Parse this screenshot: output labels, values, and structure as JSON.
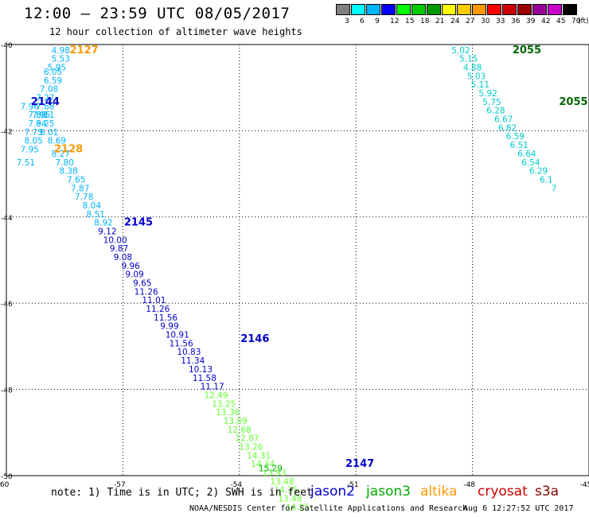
{
  "header": {
    "title": "12:00 – 23:59 UTC 08/05/2017",
    "subtitle": "12 hour collection of altimeter wave heights"
  },
  "color_scale": {
    "unit": "(ft)",
    "bins": [
      {
        "label": "3",
        "color": "#808080"
      },
      {
        "label": "6",
        "color": "#00ffff"
      },
      {
        "label": "9",
        "color": "#00b4ff"
      },
      {
        "label": "12",
        "color": "#0000ff"
      },
      {
        "label": "15",
        "color": "#00ff00"
      },
      {
        "label": "18",
        "color": "#00cc00"
      },
      {
        "label": "21",
        "color": "#009900"
      },
      {
        "label": "24",
        "color": "#ffff00"
      },
      {
        "label": "27",
        "color": "#ffcc00"
      },
      {
        "label": "30",
        "color": "#ff9900"
      },
      {
        "label": "33",
        "color": "#ff0000"
      },
      {
        "label": "36",
        "color": "#cc0000"
      },
      {
        "label": "39",
        "color": "#990000"
      },
      {
        "label": "42",
        "color": "#990099"
      },
      {
        "label": "45",
        "color": "#cc00cc"
      },
      {
        "label": "70",
        "color": "#000000"
      }
    ]
  },
  "map": {
    "lon_range": [
      -60,
      -45
    ],
    "lat_range": [
      -50,
      -40
    ],
    "lon_ticks": [
      -60,
      -57,
      -54,
      -51,
      -48,
      -45
    ],
    "lat_ticks": [
      -40,
      -42,
      -44,
      -46,
      -48,
      -50
    ],
    "lon_tick_labels": [
      "-60",
      "-57",
      "-54",
      "-51",
      "-48",
      "-45"
    ],
    "lat_tick_labels": [
      "-40",
      "-42",
      "-44",
      "-46",
      "-48",
      "-50"
    ]
  },
  "tracks": [
    {
      "sat": "altika",
      "color": "#00b4ff",
      "points": [
        {
          "lon": -58.6,
          "lat": -40.2,
          "v": "4.98"
        },
        {
          "lon": -58.6,
          "lat": -40.4,
          "v": "5.53"
        },
        {
          "lon": -58.7,
          "lat": -40.6,
          "v": "5.95"
        },
        {
          "lon": -58.8,
          "lat": -40.7,
          "v": "6.05"
        },
        {
          "lon": -58.8,
          "lat": -40.9,
          "v": "6.59"
        },
        {
          "lon": -58.9,
          "lat": -41.1,
          "v": "7.08"
        },
        {
          "lon": -59.0,
          "lat": -41.3,
          "v": "7.27"
        },
        {
          "lon": -59.0,
          "lat": -41.5,
          "v": "7.68"
        },
        {
          "lon": -59.1,
          "lat": -41.7,
          "v": "7.95"
        },
        {
          "lon": -59.2,
          "lat": -41.9,
          "v": "7.94"
        },
        {
          "lon": -59.3,
          "lat": -42.1,
          "v": "7.75"
        },
        {
          "lon": -59.3,
          "lat": -42.3,
          "v": "8.05"
        },
        {
          "lon": -59.4,
          "lat": -42.5,
          "v": "7.95"
        },
        {
          "lon": -59.5,
          "lat": -42.8,
          "v": "7.51"
        }
      ]
    },
    {
      "sat": "jason2",
      "color": "#00b4ff",
      "points": [
        {
          "lon": -59.4,
          "lat": -41.5,
          "v": "7.96"
        },
        {
          "lon": -59.2,
          "lat": -41.7,
          "v": "7.58"
        },
        {
          "lon": -59.0,
          "lat": -41.7,
          "v": "8.11"
        },
        {
          "lon": -59.0,
          "lat": -41.9,
          "v": "8.25"
        },
        {
          "lon": -58.9,
          "lat": -42.1,
          "v": "8.01"
        },
        {
          "lon": -58.7,
          "lat": -42.3,
          "v": "8.69"
        },
        {
          "lon": -58.6,
          "lat": -42.6,
          "v": "8.27"
        },
        {
          "lon": -58.5,
          "lat": -42.8,
          "v": "7.80"
        },
        {
          "lon": -58.4,
          "lat": -43.0,
          "v": "8.38"
        },
        {
          "lon": -58.2,
          "lat": -43.2,
          "v": "7.65"
        },
        {
          "lon": -58.1,
          "lat": -43.4,
          "v": "7.87"
        },
        {
          "lon": -58.0,
          "lat": -43.6,
          "v": "7.78"
        },
        {
          "lon": -57.8,
          "lat": -43.8,
          "v": "8.04"
        },
        {
          "lon": -57.7,
          "lat": -44.0,
          "v": "8.51"
        },
        {
          "lon": -57.5,
          "lat": -44.2,
          "v": "8.92"
        }
      ]
    },
    {
      "sat": "jason2",
      "color": "#0000cc",
      "points": [
        {
          "lon": -57.4,
          "lat": -44.4,
          "v": "9.12"
        },
        {
          "lon": -57.2,
          "lat": -44.6,
          "v": "10.00"
        },
        {
          "lon": -57.1,
          "lat": -44.8,
          "v": "9.87"
        },
        {
          "lon": -57.0,
          "lat": -45.0,
          "v": "9.08"
        },
        {
          "lon": -56.8,
          "lat": -45.2,
          "v": "9.96"
        },
        {
          "lon": -56.7,
          "lat": -45.4,
          "v": "9.09"
        },
        {
          "lon": -56.5,
          "lat": -45.6,
          "v": "9.65"
        },
        {
          "lon": -56.4,
          "lat": -45.8,
          "v": "11.26"
        },
        {
          "lon": -56.2,
          "lat": -46.0,
          "v": "11.01"
        },
        {
          "lon": -56.1,
          "lat": -46.2,
          "v": "11.26"
        },
        {
          "lon": -55.9,
          "lat": -46.4,
          "v": "11.56"
        },
        {
          "lon": -55.8,
          "lat": -46.6,
          "v": "9.99"
        },
        {
          "lon": -55.6,
          "lat": -46.8,
          "v": "10.91"
        },
        {
          "lon": -55.5,
          "lat": -47.0,
          "v": "11.56"
        },
        {
          "lon": -55.3,
          "lat": -47.2,
          "v": "10.83"
        },
        {
          "lon": -55.2,
          "lat": -47.4,
          "v": "11.34"
        },
        {
          "lon": -55.0,
          "lat": -47.6,
          "v": "10.13"
        },
        {
          "lon": -54.9,
          "lat": -47.8,
          "v": "11.58"
        },
        {
          "lon": -54.7,
          "lat": -48.0,
          "v": "11.17"
        }
      ]
    },
    {
      "sat": "jason2",
      "color": "#66ff33",
      "points": [
        {
          "lon": -54.6,
          "lat": -48.2,
          "v": "12.49"
        },
        {
          "lon": -54.4,
          "lat": -48.4,
          "v": "13.25"
        },
        {
          "lon": -54.3,
          "lat": -48.6,
          "v": "13.36"
        },
        {
          "lon": -54.1,
          "lat": -48.8,
          "v": "13.09"
        },
        {
          "lon": -54.0,
          "lat": -49.0,
          "v": "12.68"
        },
        {
          "lon": -53.8,
          "lat": -49.2,
          "v": "12.87"
        },
        {
          "lon": -53.7,
          "lat": -49.4,
          "v": "13.26"
        },
        {
          "lon": -53.5,
          "lat": -49.6,
          "v": "14.31"
        },
        {
          "lon": -53.4,
          "lat": -49.8,
          "v": "14.34"
        },
        {
          "lon": -53.1,
          "lat": -50.0,
          "v": "13.93"
        },
        {
          "lon": -52.9,
          "lat": -50.2,
          "v": "13.48"
        },
        {
          "lon": -52.8,
          "lat": -50.4,
          "v": "14.35"
        },
        {
          "lon": -52.7,
          "lat": -50.6,
          "v": "13.48"
        },
        {
          "lon": -52.5,
          "lat": -50.8,
          "v": "14.25"
        }
      ]
    },
    {
      "sat": "jason2",
      "color": "#00aa00",
      "points": [
        {
          "lon": -53.2,
          "lat": -49.9,
          "v": "15.29"
        }
      ]
    },
    {
      "sat": "jason3",
      "color": "#00cccc",
      "points": [
        {
          "lon": -48.3,
          "lat": -40.2,
          "v": "5.02"
        },
        {
          "lon": -48.1,
          "lat": -40.4,
          "v": "5.15"
        },
        {
          "lon": -48.0,
          "lat": -40.6,
          "v": "4.88"
        },
        {
          "lon": -47.9,
          "lat": -40.8,
          "v": "5.03"
        },
        {
          "lon": -47.8,
          "lat": -41.0,
          "v": "5.11"
        },
        {
          "lon": -47.6,
          "lat": -41.2,
          "v": "5.92"
        },
        {
          "lon": -47.5,
          "lat": -41.4,
          "v": "5.75"
        },
        {
          "lon": -47.4,
          "lat": -41.6,
          "v": "6.28"
        },
        {
          "lon": -47.2,
          "lat": -41.8,
          "v": "6.67"
        },
        {
          "lon": -47.1,
          "lat": -42.0,
          "v": "6.82"
        },
        {
          "lon": -46.9,
          "lat": -42.2,
          "v": "6.59"
        },
        {
          "lon": -46.8,
          "lat": -42.4,
          "v": "6.51"
        },
        {
          "lon": -46.6,
          "lat": -42.6,
          "v": "6.64"
        },
        {
          "lon": -46.5,
          "lat": -42.8,
          "v": "6.54"
        },
        {
          "lon": -46.3,
          "lat": -43.0,
          "v": "6.29"
        },
        {
          "lon": -46.1,
          "lat": -43.2,
          "v": "6.1"
        },
        {
          "lon": -45.9,
          "lat": -43.4,
          "v": "7"
        }
      ]
    }
  ],
  "pass_labels": [
    {
      "text": "2127",
      "color": "#ff9900",
      "lon": -58.0,
      "lat": -40.2
    },
    {
      "text": "2144",
      "color": "#0000cc",
      "lon": -59.0,
      "lat": -41.4
    },
    {
      "text": "2128",
      "color": "#ff9900",
      "lon": -58.4,
      "lat": -42.5
    },
    {
      "text": "2145",
      "color": "#0000cc",
      "lon": -56.6,
      "lat": -44.2
    },
    {
      "text": "2146",
      "color": "#0000cc",
      "lon": -53.6,
      "lat": -46.9
    },
    {
      "text": "2147",
      "color": "#0000cc",
      "lon": -50.9,
      "lat": -49.8
    },
    {
      "text": "2055",
      "color": "#006600",
      "lon": -46.6,
      "lat": -40.2
    },
    {
      "text": "2055",
      "color": "#006600",
      "lon": -45.4,
      "lat": -41.4
    }
  ],
  "note": "note: 1) Time is in UTC; 2) SWH is in feet",
  "legend": [
    {
      "name": "jason2",
      "color": "#0000cc"
    },
    {
      "name": "jason3",
      "color": "#00aa00"
    },
    {
      "name": "altika",
      "color": "#ff9900"
    },
    {
      "name": "cryosat",
      "color": "#cc0000"
    },
    {
      "name": "s3a",
      "color": "#880000"
    }
  ],
  "credit": {
    "org": "NOAA/NESDIS Center for Satellite Applications and Research",
    "generated": "Aug  6 12:27:52 UTC 2017"
  }
}
